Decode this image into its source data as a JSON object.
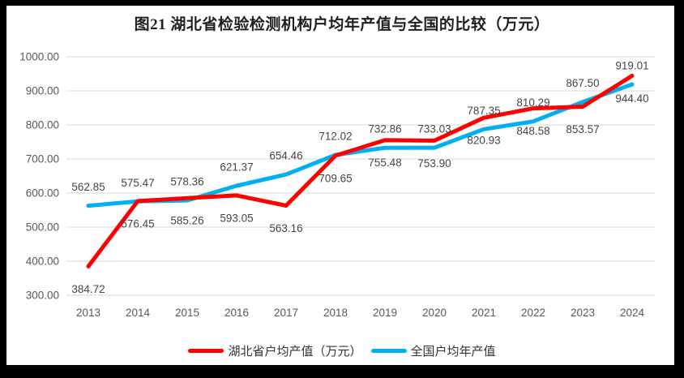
{
  "title": "图21 湖北省检验检测机构户均年产值与全国的比较（万元）",
  "chart_data": {
    "type": "line",
    "categories": [
      "2013",
      "2014",
      "2015",
      "2016",
      "2017",
      "2018",
      "2019",
      "2020",
      "2021",
      "2022",
      "2023",
      "2024"
    ],
    "series": [
      {
        "name": "湖北省户均产值（万元）",
        "color": "#FF0000",
        "label_position": "below",
        "values": [
          384.72,
          576.45,
          585.26,
          593.05,
          563.16,
          709.65,
          755.48,
          753.9,
          820.93,
          848.58,
          853.57,
          944.4
        ]
      },
      {
        "name": "全国户均年产值",
        "color": "#00B0F0",
        "label_position": "above",
        "values": [
          562.85,
          575.47,
          578.36,
          621.37,
          654.46,
          712.02,
          732.86,
          733.03,
          787.35,
          810.29,
          867.5,
          919.01
        ]
      }
    ],
    "ylim": [
      300,
      1000
    ],
    "ytick_step": 100,
    "ytick_format": "two-decimals",
    "value_label_format": "two-decimals",
    "grid": "horizontal",
    "legend_position": "bottom",
    "gridline_color": "#D9D9D9",
    "tick_label_color": "#595959",
    "value_label_color": "#454545",
    "frame_color": "#000000",
    "background_color": "#FFFFFF"
  }
}
